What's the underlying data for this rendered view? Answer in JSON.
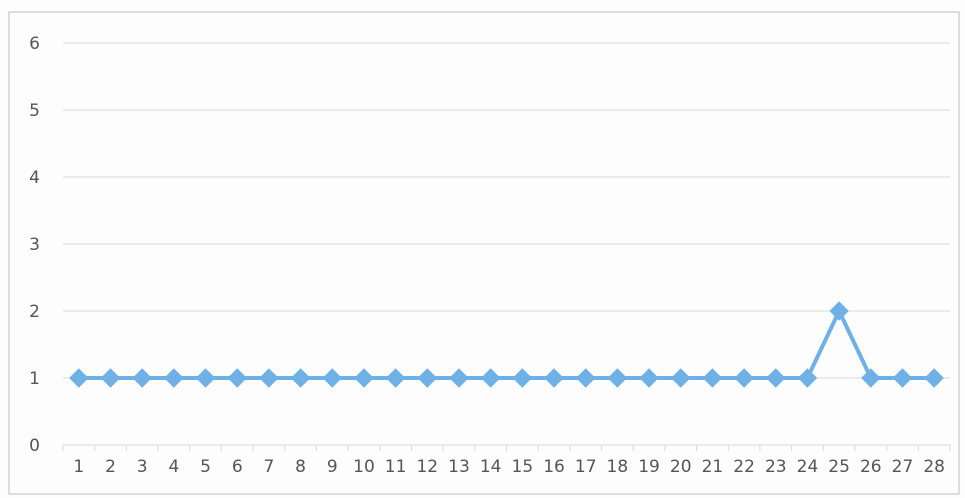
{
  "chart_data": {
    "type": "line",
    "title": "",
    "xlabel": "",
    "ylabel": "",
    "categories": [
      "1",
      "2",
      "3",
      "4",
      "5",
      "6",
      "7",
      "8",
      "9",
      "10",
      "11",
      "12",
      "13",
      "14",
      "15",
      "16",
      "17",
      "18",
      "19",
      "20",
      "21",
      "22",
      "23",
      "24",
      "25",
      "26",
      "27",
      "28"
    ],
    "y_ticks": [
      "0",
      "1",
      "2",
      "3",
      "4",
      "5",
      "6"
    ],
    "ylim": [
      0,
      6
    ],
    "grid": true,
    "legend": "none",
    "series": [
      {
        "color": "#6fb0e6",
        "marker": "diamond",
        "values": [
          1,
          1,
          1,
          1,
          1,
          1,
          1,
          1,
          1,
          1,
          1,
          1,
          1,
          1,
          1,
          1,
          1,
          1,
          1,
          1,
          1,
          1,
          1,
          1,
          2,
          1,
          1,
          1
        ]
      }
    ]
  }
}
